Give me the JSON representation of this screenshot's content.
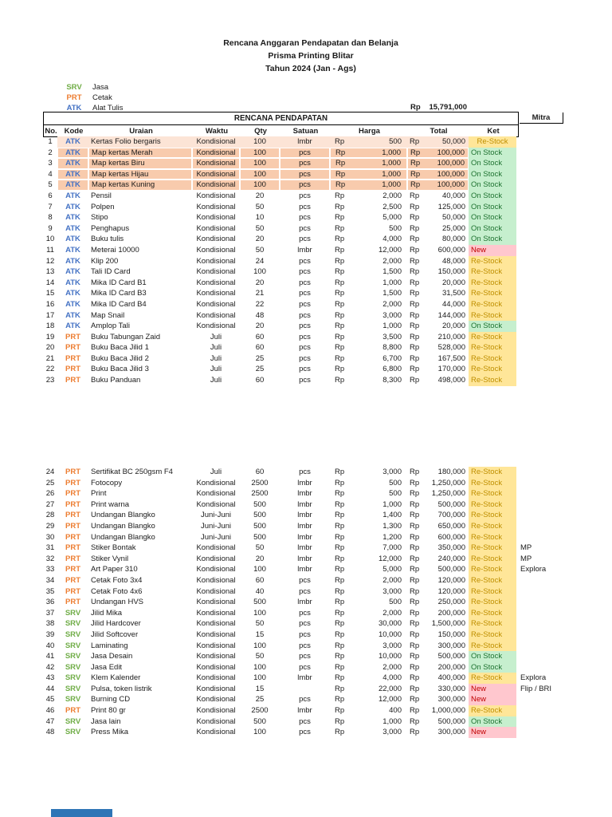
{
  "doc": {
    "title_line1": "Rencana Anggaran Pendapatan dan Belanja",
    "title_line2": "Prisma Printing Blitar",
    "title_line3": "Tahun 2024 (Jan - Ags)"
  },
  "legend": {
    "items": [
      {
        "code": "SRV",
        "label": "Jasa",
        "color": "#70AD47"
      },
      {
        "code": "PRT",
        "label": "Cetak",
        "color": "#ED7D31"
      },
      {
        "code": "ATK",
        "label": "Alat Tulis",
        "color": "#4472C4"
      }
    ]
  },
  "summary": {
    "currency": "Rp",
    "amount": "15,791,000"
  },
  "table": {
    "section_title": "RENCANA PENDAPATAN",
    "headers": {
      "no": "No.",
      "kode": "Kode",
      "uraian": "Uraian",
      "waktu": "Waktu",
      "qty": "Qty",
      "satuan": "Satuan",
      "harga": "Harga",
      "total": "Total",
      "ket": "Ket",
      "mitra": "Mitra"
    },
    "currency_label": "Rp",
    "status_colors": {
      "restock_bg": "#FFE699",
      "onstock_bg": "#C6EFCE",
      "new_bg": "#FFC7CE"
    },
    "rows": [
      {
        "no": "1",
        "kode": "ATK",
        "kt": "atk",
        "ur": "Kertas Folio bergaris",
        "wk": "Kondisional",
        "qty": "100",
        "sat": "lmbr",
        "hrg": "500",
        "tot": "50,000",
        "ket": "Re-Stock",
        "ks": "r",
        "mit": "",
        "hl": "light",
        "kc": true
      },
      {
        "no": "2",
        "kode": "ATK",
        "kt": "atk",
        "ur": "Map kertas Merah",
        "wk": "Kondisional",
        "qty": "100",
        "sat": "pcs",
        "hrg": "1,000",
        "tot": "100,000",
        "ket": "On Stock",
        "ks": "o",
        "mit": "",
        "hl": "dark"
      },
      {
        "no": "3",
        "kode": "ATK",
        "kt": "atk",
        "ur": "Map kertas Biru",
        "wk": "Kondisional",
        "qty": "100",
        "sat": "pcs",
        "hrg": "1,000",
        "tot": "100,000",
        "ket": "On Stock",
        "ks": "o",
        "mit": "",
        "hl": "dark"
      },
      {
        "no": "4",
        "kode": "ATK",
        "kt": "atk",
        "ur": "Map kertas Hijau",
        "wk": "Kondisional",
        "qty": "100",
        "sat": "pcs",
        "hrg": "1,000",
        "tot": "100,000",
        "ket": "On Stock",
        "ks": "o",
        "mit": "",
        "hl": "dark"
      },
      {
        "no": "5",
        "kode": "ATK",
        "kt": "atk",
        "ur": "Map kertas Kuning",
        "wk": "Kondisional",
        "qty": "100",
        "sat": "pcs",
        "hrg": "1,000",
        "tot": "100,000",
        "ket": "On Stock",
        "ks": "o",
        "mit": "",
        "hl": "dark"
      },
      {
        "no": "6",
        "kode": "ATK",
        "kt": "atk",
        "ur": "Pensil",
        "wk": "Kondisional",
        "qty": "20",
        "sat": "pcs",
        "hrg": "2,000",
        "tot": "40,000",
        "ket": "On Stock",
        "ks": "o",
        "mit": ""
      },
      {
        "no": "7",
        "kode": "ATK",
        "kt": "atk",
        "ur": "Polpen",
        "wk": "Kondisional",
        "qty": "50",
        "sat": "pcs",
        "hrg": "2,500",
        "tot": "125,000",
        "ket": "On Stock",
        "ks": "o",
        "mit": ""
      },
      {
        "no": "8",
        "kode": "ATK",
        "kt": "atk",
        "ur": "Stipo",
        "wk": "Kondisional",
        "qty": "10",
        "sat": "pcs",
        "hrg": "5,000",
        "tot": "50,000",
        "ket": "On Stock",
        "ks": "o",
        "mit": ""
      },
      {
        "no": "9",
        "kode": "ATK",
        "kt": "atk",
        "ur": "Penghapus",
        "wk": "Kondisional",
        "qty": "50",
        "sat": "pcs",
        "hrg": "500",
        "tot": "25,000",
        "ket": "On Stock",
        "ks": "o",
        "mit": ""
      },
      {
        "no": "10",
        "kode": "ATK",
        "kt": "atk",
        "ur": "Buku tulis",
        "wk": "Kondisional",
        "qty": "20",
        "sat": "pcs",
        "hrg": "4,000",
        "tot": "80,000",
        "ket": "On Stock",
        "ks": "o",
        "mit": ""
      },
      {
        "no": "11",
        "kode": "ATK",
        "kt": "atk",
        "ur": "Meterai 10000",
        "wk": "Kondisional",
        "qty": "50",
        "sat": "lmbr",
        "hrg": "12,000",
        "tot": "600,000",
        "ket": "New",
        "ks": "n",
        "mit": ""
      },
      {
        "no": "12",
        "kode": "ATK",
        "kt": "atk",
        "ur": "Klip 200",
        "wk": "Kondisional",
        "qty": "24",
        "sat": "pcs",
        "hrg": "2,000",
        "tot": "48,000",
        "ket": "Re-Stock",
        "ks": "r",
        "mit": ""
      },
      {
        "no": "13",
        "kode": "ATK",
        "kt": "atk",
        "ur": "Tali ID Card",
        "wk": "Kondisional",
        "qty": "100",
        "sat": "pcs",
        "hrg": "1,500",
        "tot": "150,000",
        "ket": "Re-Stock",
        "ks": "r",
        "mit": ""
      },
      {
        "no": "14",
        "kode": "ATK",
        "kt": "atk",
        "ur": "Mika ID Card B1",
        "wk": "Kondisional",
        "qty": "20",
        "sat": "pcs",
        "hrg": "1,000",
        "tot": "20,000",
        "ket": "Re-Stock",
        "ks": "r",
        "mit": ""
      },
      {
        "no": "15",
        "kode": "ATK",
        "kt": "atk",
        "ur": "Mika ID Card B3",
        "wk": "Kondisional",
        "qty": "21",
        "sat": "pcs",
        "hrg": "1,500",
        "tot": "31,500",
        "ket": "Re-Stock",
        "ks": "r",
        "mit": ""
      },
      {
        "no": "16",
        "kode": "ATK",
        "kt": "atk",
        "ur": "Mika ID Card B4",
        "wk": "Kondisional",
        "qty": "22",
        "sat": "pcs",
        "hrg": "2,000",
        "tot": "44,000",
        "ket": "Re-Stock",
        "ks": "r",
        "mit": ""
      },
      {
        "no": "17",
        "kode": "ATK",
        "kt": "atk",
        "ur": "Map Snail",
        "wk": "Kondisional",
        "qty": "48",
        "sat": "pcs",
        "hrg": "3,000",
        "tot": "144,000",
        "ket": "Re-Stock",
        "ks": "r",
        "mit": ""
      },
      {
        "no": "18",
        "kode": "ATK",
        "kt": "atk",
        "ur": "Amplop Tali",
        "wk": "Kondisional",
        "qty": "20",
        "sat": "pcs",
        "hrg": "1,000",
        "tot": "20,000",
        "ket": "On Stock",
        "ks": "o",
        "mit": ""
      },
      {
        "no": "19",
        "kode": "PRT",
        "kt": "prt",
        "ur": "Buku Tabungan Zaid",
        "wk": "Juli",
        "qty": "60",
        "sat": "pcs",
        "hrg": "3,500",
        "tot": "210,000",
        "ket": "Re-Stock",
        "ks": "r",
        "mit": ""
      },
      {
        "no": "20",
        "kode": "PRT",
        "kt": "prt",
        "ur": "Buku Baca Jilid 1",
        "wk": "Juli",
        "qty": "60",
        "sat": "pcs",
        "hrg": "8,800",
        "tot": "528,000",
        "ket": "Re-Stock",
        "ks": "r",
        "mit": ""
      },
      {
        "no": "21",
        "kode": "PRT",
        "kt": "prt",
        "ur": "Buku Baca Jilid 2",
        "wk": "Juli",
        "qty": "25",
        "sat": "pcs",
        "hrg": "6,700",
        "tot": "167,500",
        "ket": "Re-Stock",
        "ks": "r",
        "mit": ""
      },
      {
        "no": "22",
        "kode": "PRT",
        "kt": "prt",
        "ur": "Buku Baca Jilid 3",
        "wk": "Juli",
        "qty": "25",
        "sat": "pcs",
        "hrg": "6,800",
        "tot": "170,000",
        "ket": "Re-Stock",
        "ks": "r",
        "mit": ""
      },
      {
        "no": "23",
        "kode": "PRT",
        "kt": "prt",
        "ur": "Buku Panduan",
        "wk": "Juli",
        "qty": "60",
        "sat": "pcs",
        "hrg": "8,300",
        "tot": "498,000",
        "ket": "Re-Stock",
        "ks": "r",
        "mit": ""
      },
      {
        "no": "24",
        "kode": "PRT",
        "kt": "prt",
        "ur": "Sertifikat BC 250gsm F4",
        "wk": "Juli",
        "qty": "60",
        "sat": "pcs",
        "hrg": "3,000",
        "tot": "180,000",
        "ket": "Re-Stock",
        "ks": "r",
        "mit": ""
      },
      {
        "no": "25",
        "kode": "PRT",
        "kt": "prt",
        "ur": "Fotocopy",
        "wk": "Kondisional",
        "qty": "2500",
        "sat": "lmbr",
        "hrg": "500",
        "tot": "1,250,000",
        "ket": "Re-Stock",
        "ks": "r",
        "mit": ""
      },
      {
        "no": "26",
        "kode": "PRT",
        "kt": "prt",
        "ur": "Print",
        "wk": "Kondisional",
        "qty": "2500",
        "sat": "lmbr",
        "hrg": "500",
        "tot": "1,250,000",
        "ket": "Re-Stock",
        "ks": "r",
        "mit": ""
      },
      {
        "no": "27",
        "kode": "PRT",
        "kt": "prt",
        "ur": "Print warna",
        "wk": "Kondisional",
        "qty": "500",
        "sat": "lmbr",
        "hrg": "1,000",
        "tot": "500,000",
        "ket": "Re-Stock",
        "ks": "r",
        "mit": ""
      },
      {
        "no": "28",
        "kode": "PRT",
        "kt": "prt",
        "ur": "Undangan Blangko",
        "wk": "Juni-Juni",
        "qty": "500",
        "sat": "lmbr",
        "hrg": "1,400",
        "tot": "700,000",
        "ket": "Re-Stock",
        "ks": "r",
        "mit": ""
      },
      {
        "no": "29",
        "kode": "PRT",
        "kt": "prt",
        "ur": "Undangan Blangko",
        "wk": "Juni-Juni",
        "qty": "500",
        "sat": "lmbr",
        "hrg": "1,300",
        "tot": "650,000",
        "ket": "Re-Stock",
        "ks": "r",
        "mit": ""
      },
      {
        "no": "30",
        "kode": "PRT",
        "kt": "prt",
        "ur": "Undangan Blangko",
        "wk": "Juni-Juni",
        "qty": "500",
        "sat": "lmbr",
        "hrg": "1,200",
        "tot": "600,000",
        "ket": "Re-Stock",
        "ks": "r",
        "mit": ""
      },
      {
        "no": "31",
        "kode": "PRT",
        "kt": "prt",
        "ur": "Stiker Bontak",
        "wk": "Kondisional",
        "qty": "50",
        "sat": "lmbr",
        "hrg": "7,000",
        "tot": "350,000",
        "ket": "Re-Stock",
        "ks": "r",
        "mit": "MP"
      },
      {
        "no": "32",
        "kode": "PRT",
        "kt": "prt",
        "ur": "Stiker Vynil",
        "wk": "Kondisional",
        "qty": "20",
        "sat": "lmbr",
        "hrg": "12,000",
        "tot": "240,000",
        "ket": "Re-Stock",
        "ks": "r",
        "mit": "MP"
      },
      {
        "no": "33",
        "kode": "PRT",
        "kt": "prt",
        "ur": "Art Paper 310",
        "wk": "Kondisional",
        "qty": "100",
        "sat": "lmbr",
        "hrg": "5,000",
        "tot": "500,000",
        "ket": "Re-Stock",
        "ks": "r",
        "mit": "Explora"
      },
      {
        "no": "34",
        "kode": "PRT",
        "kt": "prt",
        "ur": "Cetak Foto 3x4",
        "wk": "Kondisional",
        "qty": "60",
        "sat": "pcs",
        "hrg": "2,000",
        "tot": "120,000",
        "ket": "Re-Stock",
        "ks": "r",
        "mit": ""
      },
      {
        "no": "35",
        "kode": "PRT",
        "kt": "prt",
        "ur": "Cetak Foto 4x6",
        "wk": "Kondisional",
        "qty": "40",
        "sat": "pcs",
        "hrg": "3,000",
        "tot": "120,000",
        "ket": "Re-Stock",
        "ks": "r",
        "mit": ""
      },
      {
        "no": "36",
        "kode": "PRT",
        "kt": "prt",
        "ur": "Undangan HVS",
        "wk": "Kondisional",
        "qty": "500",
        "sat": "lmbr",
        "hrg": "500",
        "tot": "250,000",
        "ket": "Re-Stock",
        "ks": "r",
        "mit": ""
      },
      {
        "no": "37",
        "kode": "SRV",
        "kt": "srv",
        "ur": "Jilid Mika",
        "wk": "Kondisional",
        "qty": "100",
        "sat": "pcs",
        "hrg": "2,000",
        "tot": "200,000",
        "ket": "Re-Stock",
        "ks": "r",
        "mit": ""
      },
      {
        "no": "38",
        "kode": "SRV",
        "kt": "srv",
        "ur": "Jilid Hardcover",
        "wk": "Kondisional",
        "qty": "50",
        "sat": "pcs",
        "hrg": "30,000",
        "tot": "1,500,000",
        "ket": "Re-Stock",
        "ks": "r",
        "mit": ""
      },
      {
        "no": "39",
        "kode": "SRV",
        "kt": "srv",
        "ur": "Jilid Softcover",
        "wk": "Kondisional",
        "qty": "15",
        "sat": "pcs",
        "hrg": "10,000",
        "tot": "150,000",
        "ket": "Re-Stock",
        "ks": "r",
        "mit": ""
      },
      {
        "no": "40",
        "kode": "SRV",
        "kt": "srv",
        "ur": "Laminating",
        "wk": "Kondisional",
        "qty": "100",
        "sat": "pcs",
        "hrg": "3,000",
        "tot": "300,000",
        "ket": "Re-Stock",
        "ks": "r",
        "mit": ""
      },
      {
        "no": "41",
        "kode": "SRV",
        "kt": "srv",
        "ur": "Jasa Desain",
        "wk": "Kondisional",
        "qty": "50",
        "sat": "pcs",
        "hrg": "10,000",
        "tot": "500,000",
        "ket": "On Stock",
        "ks": "o",
        "mit": ""
      },
      {
        "no": "42",
        "kode": "SRV",
        "kt": "srv",
        "ur": "Jasa Edit",
        "wk": "Kondisional",
        "qty": "100",
        "sat": "pcs",
        "hrg": "2,000",
        "tot": "200,000",
        "ket": "On Stock",
        "ks": "o",
        "mit": ""
      },
      {
        "no": "43",
        "kode": "SRV",
        "kt": "srv",
        "ur": "Klem Kalender",
        "wk": "Kondisional",
        "qty": "100",
        "sat": "lmbr",
        "hrg": "4,000",
        "tot": "400,000",
        "ket": "Re-Stock",
        "ks": "r",
        "mit": "Explora"
      },
      {
        "no": "44",
        "kode": "SRV",
        "kt": "srv",
        "ur": "Pulsa, token listrik",
        "wk": "Kondisional",
        "qty": "15",
        "sat": "",
        "hrg": "22,000",
        "tot": "330,000",
        "ket": "New",
        "ks": "n",
        "mit": "Flip / BRI"
      },
      {
        "no": "45",
        "kode": "SRV",
        "kt": "srv",
        "ur": "Burning CD",
        "wk": "Kondisional",
        "qty": "25",
        "sat": "pcs",
        "hrg": "12,000",
        "tot": "300,000",
        "ket": "New",
        "ks": "n",
        "mit": ""
      },
      {
        "no": "46",
        "kode": "PRT",
        "kt": "prt",
        "ur": "Print 80 gr",
        "wk": "Kondisional",
        "qty": "2500",
        "sat": "lmbr",
        "hrg": "400",
        "tot": "1,000,000",
        "ket": "Re-Stock",
        "ks": "r",
        "mit": ""
      },
      {
        "no": "47",
        "kode": "SRV",
        "kt": "srv",
        "ur": "Jasa lain",
        "wk": "Kondisional",
        "qty": "500",
        "sat": "pcs",
        "hrg": "1,000",
        "tot": "500,000",
        "ket": "On Stock",
        "ks": "o",
        "mit": ""
      },
      {
        "no": "48",
        "kode": "SRV",
        "kt": "srv",
        "ur": "Press Mika",
        "wk": "Kondisional",
        "qty": "100",
        "sat": "pcs",
        "hrg": "3,000",
        "tot": "300,000",
        "ket": "New",
        "ks": "n",
        "mit": ""
      }
    ]
  }
}
